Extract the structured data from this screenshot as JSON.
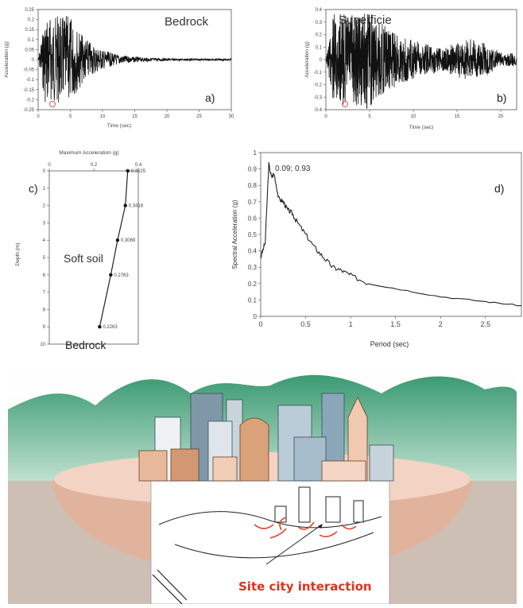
{
  "panel_a": {
    "title": "Bedrock",
    "tag": "a)",
    "ylabel": "Acceleration (g)",
    "xlabel": "Time (sec)",
    "yticks": [
      "0.25",
      "0.2",
      "0.15",
      "0.1",
      "0.05",
      "0",
      "-0.05",
      "-0.1",
      "-0.15",
      "-0.2",
      "-0.25"
    ],
    "xticks": [
      "0",
      "5",
      "10",
      "15",
      "20",
      "25",
      "30"
    ]
  },
  "panel_b": {
    "title": "Superficie",
    "tag": "b)",
    "ylabel": "Acceleration (g)",
    "xlabel": "Time (sec)",
    "yticks": [
      "0.4",
      "0.3",
      "0.2",
      "0.1",
      "0",
      "-0.1",
      "-0.2",
      "-0.3",
      "-0.4"
    ],
    "xticks": [
      "0",
      "5",
      "10",
      "15",
      "20"
    ]
  },
  "panel_c": {
    "tag": "c)",
    "top_label": "Maximum Acceleration (g)",
    "ylabel": "Depth (m)",
    "xticks": [
      "0",
      "0.2",
      "0.4"
    ],
    "yticks": [
      "0",
      "1",
      "2",
      "3",
      "4",
      "5",
      "6",
      "7",
      "8",
      "9",
      "10"
    ],
    "soft_soil_label": "Soft soil",
    "bedrock_label": "Bedrock",
    "points": [
      {
        "depth": 0,
        "acc": 0.3525,
        "label": "0.3525"
      },
      {
        "depth": 2,
        "acc": 0.3418,
        "label": "0.3418"
      },
      {
        "depth": 4,
        "acc": 0.3069,
        "label": "0.3069"
      },
      {
        "depth": 6,
        "acc": 0.2763,
        "label": "0.2763"
      },
      {
        "depth": 9,
        "acc": 0.2263,
        "label": "0.2263"
      }
    ]
  },
  "panel_d": {
    "tag": "d)",
    "peak_label": "0.09; 0.93",
    "ylabel": "Spectral Acceleration (g)",
    "xlabel": "Period (sec)",
    "yticks": [
      "0",
      "0.1",
      "0.2",
      "0.3",
      "0.4",
      "0.5",
      "0.6",
      "0.7",
      "0.8",
      "0.9",
      "1"
    ],
    "xticks": [
      "0",
      "0.5",
      "1",
      "1.5",
      "2",
      "2.5"
    ]
  },
  "chart_data": [
    {
      "type": "line",
      "id": "spectrum",
      "xlabel": "Period (sec)",
      "ylabel": "Spectral Acceleration (g)",
      "xlim": [
        0,
        2.9
      ],
      "ylim": [
        0,
        1
      ],
      "x": [
        0,
        0.05,
        0.09,
        0.12,
        0.15,
        0.2,
        0.25,
        0.3,
        0.35,
        0.4,
        0.5,
        0.6,
        0.7,
        0.8,
        0.9,
        1.0,
        1.2,
        1.5,
        2.0,
        2.5,
        2.9
      ],
      "y": [
        0.36,
        0.45,
        0.93,
        0.85,
        0.87,
        0.72,
        0.7,
        0.65,
        0.63,
        0.58,
        0.5,
        0.42,
        0.36,
        0.3,
        0.28,
        0.25,
        0.2,
        0.17,
        0.12,
        0.09,
        0.065
      ]
    }
  ],
  "scene": {
    "caption": "Site city interaction",
    "colors": {
      "hills": "#2f8a64",
      "ground": "#e8c4b0",
      "rock": "#cbbdb3",
      "arrows": "#e0452a",
      "caption": "#e0321e"
    }
  }
}
